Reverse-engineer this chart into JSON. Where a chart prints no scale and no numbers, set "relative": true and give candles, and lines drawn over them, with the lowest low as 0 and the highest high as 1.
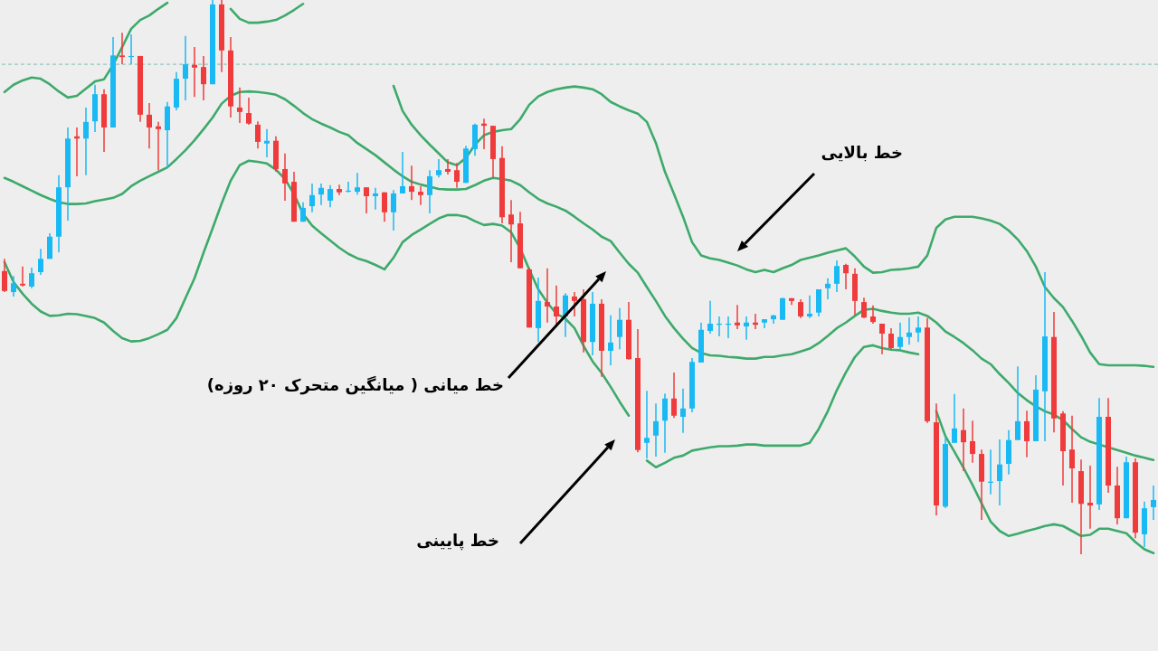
{
  "chart_data": {
    "type": "candlestick",
    "relative": true,
    "categories": [
      null,
      null,
      null,
      null,
      null,
      null,
      null,
      null,
      null,
      null,
      null,
      null,
      null,
      null,
      null,
      null,
      null,
      null,
      null,
      null,
      null,
      null,
      null,
      null,
      null,
      null,
      null,
      null,
      null,
      null,
      null,
      null,
      null,
      null,
      null,
      null,
      null,
      null,
      null,
      null,
      null,
      null,
      null,
      null,
      null,
      null,
      null,
      null,
      null,
      null,
      null,
      null,
      null,
      null,
      null,
      null,
      null,
      null,
      null,
      null,
      null,
      null,
      null,
      null,
      null,
      null,
      null,
      null,
      null,
      null,
      null,
      null,
      null,
      null,
      null,
      null,
      null,
      null,
      null,
      null,
      null,
      null,
      null,
      null,
      null,
      null,
      null,
      null,
      null,
      null,
      null,
      null,
      null,
      null,
      null,
      null,
      null,
      null,
      null,
      null,
      null,
      null,
      null,
      null,
      null,
      null,
      null,
      null,
      null,
      null,
      null,
      null,
      null,
      null,
      null,
      null,
      null,
      null,
      null,
      null,
      null,
      null,
      null,
      null,
      null,
      null,
      null,
      null
    ],
    "ohlc": [
      [
        0.511,
        0.533,
        0.473,
        0.475
      ],
      [
        0.473,
        0.502,
        0.465,
        0.489
      ],
      [
        0.488,
        0.519,
        0.483,
        0.485
      ],
      [
        0.483,
        0.517,
        0.48,
        0.507
      ],
      [
        0.509,
        0.551,
        0.504,
        0.533
      ],
      [
        0.533,
        0.579,
        0.533,
        0.573
      ],
      [
        0.573,
        0.684,
        0.545,
        0.662
      ],
      [
        0.662,
        0.77,
        0.602,
        0.75
      ],
      [
        0.754,
        0.77,
        0.682,
        0.75
      ],
      [
        0.75,
        0.806,
        0.684,
        0.78
      ],
      [
        0.781,
        0.847,
        0.762,
        0.83
      ],
      [
        0.83,
        0.839,
        0.726,
        0.77
      ],
      [
        0.77,
        0.933,
        0.77,
        0.9
      ],
      [
        0.9,
        0.941,
        0.884,
        0.897
      ],
      [
        0.897,
        0.938,
        0.884,
        0.899
      ],
      [
        0.899,
        0.899,
        0.78,
        0.793
      ],
      [
        0.793,
        0.814,
        0.732,
        0.77
      ],
      [
        0.772,
        0.78,
        0.693,
        0.767
      ],
      [
        0.765,
        0.816,
        0.697,
        0.808
      ],
      [
        0.806,
        0.87,
        0.801,
        0.858
      ],
      [
        0.858,
        0.935,
        0.819,
        0.884
      ],
      [
        0.883,
        0.915,
        0.825,
        0.878
      ],
      [
        0.879,
        0.899,
        0.819,
        0.848
      ],
      [
        0.848,
        1,
        0.848,
        0.992
      ],
      [
        0.992,
        1,
        0.87,
        0.909
      ],
      [
        0.909,
        0.933,
        0.788,
        0.808
      ],
      [
        0.806,
        0.842,
        0.778,
        0.798
      ],
      [
        0.796,
        0.824,
        0.775,
        0.777
      ],
      [
        0.775,
        0.781,
        0.732,
        0.744
      ],
      [
        0.741,
        0.767,
        0.716,
        0.746
      ],
      [
        0.746,
        0.754,
        0.69,
        0.695
      ],
      [
        0.695,
        0.723,
        0.638,
        0.669
      ],
      [
        0.672,
        0.69,
        0.6,
        0.6
      ],
      [
        0.6,
        0.635,
        0.6,
        0.625
      ],
      [
        0.628,
        0.669,
        0.617,
        0.648
      ],
      [
        0.649,
        0.669,
        0.63,
        0.661
      ],
      [
        0.638,
        0.666,
        0.626,
        0.659
      ],
      [
        0.659,
        0.667,
        0.648,
        0.653
      ],
      [
        0.654,
        0.672,
        0.653,
        0.656
      ],
      [
        0.654,
        0.688,
        0.649,
        0.662
      ],
      [
        0.662,
        0.662,
        0.615,
        0.646
      ],
      [
        0.646,
        0.661,
        0.622,
        0.651
      ],
      [
        0.653,
        0.653,
        0.6,
        0.617
      ],
      [
        0.617,
        0.657,
        0.584,
        0.651
      ],
      [
        0.651,
        0.726,
        0.651,
        0.664
      ],
      [
        0.664,
        0.701,
        0.639,
        0.654
      ],
      [
        0.654,
        0.664,
        0.63,
        0.648
      ],
      [
        0.648,
        0.693,
        0.615,
        0.682
      ],
      [
        0.684,
        0.713,
        0.68,
        0.693
      ],
      [
        0.695,
        0.713,
        0.685,
        0.69
      ],
      [
        0.693,
        0.706,
        0.661,
        0.672
      ],
      [
        0.67,
        0.737,
        0.67,
        0.732
      ],
      [
        0.731,
        0.777,
        0.719,
        0.775
      ],
      [
        0.777,
        0.786,
        0.731,
        0.773
      ],
      [
        0.773,
        0.773,
        0.679,
        0.713
      ],
      [
        0.715,
        0.736,
        0.597,
        0.608
      ],
      [
        0.613,
        0.639,
        0.527,
        0.595
      ],
      [
        0.597,
        0.618,
        0.516,
        0.516
      ],
      [
        0.514,
        0.517,
        0.409,
        0.409
      ],
      [
        0.408,
        0.499,
        0.383,
        0.457
      ],
      [
        0.455,
        0.516,
        0.418,
        0.447
      ],
      [
        0.447,
        0.485,
        0.413,
        0.429
      ],
      [
        0.429,
        0.471,
        0.392,
        0.467
      ],
      [
        0.465,
        0.473,
        0.429,
        0.457
      ],
      [
        0.46,
        0.478,
        0.364,
        0.383
      ],
      [
        0.383,
        0.473,
        0.359,
        0.452
      ],
      [
        0.452,
        0.46,
        0.32,
        0.367
      ],
      [
        0.367,
        0.431,
        0.341,
        0.382
      ],
      [
        0.392,
        0.444,
        0.37,
        0.423
      ],
      [
        0.423,
        0.455,
        0.351,
        0.352
      ],
      [
        0.354,
        0.406,
        0.184,
        0.188
      ],
      [
        0.201,
        0.295,
        0.173,
        0.21
      ],
      [
        0.214,
        0.272,
        0.176,
        0.24
      ],
      [
        0.241,
        0.29,
        0.183,
        0.281
      ],
      [
        0.281,
        0.328,
        0.246,
        0.25
      ],
      [
        0.248,
        0.299,
        0.219,
        0.263
      ],
      [
        0.263,
        0.354,
        0.256,
        0.347
      ],
      [
        0.346,
        0.418,
        0.346,
        0.405
      ],
      [
        0.403,
        0.457,
        0.398,
        0.416
      ],
      [
        0.414,
        0.429,
        0.393,
        0.416
      ],
      [
        0.414,
        0.429,
        0.39,
        0.416
      ],
      [
        0.418,
        0.45,
        0.406,
        0.413
      ],
      [
        0.411,
        0.429,
        0.387,
        0.418
      ],
      [
        0.418,
        0.434,
        0.406,
        0.414
      ],
      [
        0.418,
        0.424,
        0.408,
        0.424
      ],
      [
        0.424,
        0.432,
        0.416,
        0.431
      ],
      [
        0.423,
        0.463,
        0.423,
        0.462
      ],
      [
        0.462,
        0.462,
        0.45,
        0.457
      ],
      [
        0.455,
        0.46,
        0.426,
        0.429
      ],
      [
        0.429,
        0.467,
        0.426,
        0.434
      ],
      [
        0.436,
        0.478,
        0.429,
        0.478
      ],
      [
        0.48,
        0.498,
        0.46,
        0.488
      ],
      [
        0.488,
        0.53,
        0.473,
        0.52
      ],
      [
        0.522,
        0.524,
        0.478,
        0.507
      ],
      [
        0.506,
        0.516,
        0.432,
        0.457
      ],
      [
        0.455,
        0.463,
        0.426,
        0.427
      ],
      [
        0.429,
        0.449,
        0.416,
        0.419
      ],
      [
        0.416,
        0.416,
        0.361,
        0.398
      ],
      [
        0.398,
        0.408,
        0.369,
        0.372
      ],
      [
        0.374,
        0.418,
        0.369,
        0.392
      ],
      [
        0.392,
        0.427,
        0.378,
        0.4
      ],
      [
        0.4,
        0.429,
        0.383,
        0.409
      ],
      [
        0.409,
        0.426,
        0.237,
        0.24
      ],
      [
        0.238,
        0.272,
        0.07,
        0.088
      ],
      [
        0.086,
        0.21,
        0.083,
        0.199
      ],
      [
        0.201,
        0.289,
        0.201,
        0.227
      ],
      [
        0.224,
        0.263,
        0.15,
        0.202
      ],
      [
        0.204,
        0.241,
        0.165,
        0.181
      ],
      [
        0.181,
        0.189,
        0.062,
        0.131
      ],
      [
        0.129,
        0.189,
        0.108,
        0.131
      ],
      [
        0.132,
        0.207,
        0.088,
        0.162
      ],
      [
        0.163,
        0.224,
        0.144,
        0.206
      ],
      [
        0.206,
        0.339,
        0.206,
        0.24
      ],
      [
        0.24,
        0.259,
        0.175,
        0.204
      ],
      [
        0.204,
        0.323,
        0.204,
        0.297
      ],
      [
        0.294,
        0.509,
        0.204,
        0.393
      ],
      [
        0.392,
        0.437,
        0.22,
        0.245
      ],
      [
        0.254,
        0.258,
        0.124,
        0.186
      ],
      [
        0.189,
        0.25,
        0.093,
        0.155
      ],
      [
        0.15,
        0.171,
        0,
        0.091
      ],
      [
        0.093,
        0.16,
        0.046,
        0.088
      ],
      [
        0.09,
        0.282,
        0.08,
        0.248
      ],
      [
        0.248,
        0.282,
        0.111,
        0.124
      ],
      [
        0.124,
        0.158,
        0.054,
        0.065
      ],
      [
        0.065,
        0.176,
        0.065,
        0.166
      ],
      [
        0.166,
        0.173,
        0.029,
        0.039
      ],
      [
        0.036,
        0.095,
        0.013,
        0.083
      ],
      [
        0.085,
        0.124,
        0.062,
        0.098
      ]
    ],
    "colors": [
      "#ef3b3b",
      "#19b9f4",
      "#ef3b3b",
      "#19b9f4",
      "#19b9f4",
      "#19b9f4",
      "#19b9f4",
      "#19b9f4",
      "#ef3b3b",
      "#19b9f4",
      "#19b9f4",
      "#ef3b3b",
      "#19b9f4",
      "#ef3b3b",
      "#19b9f4",
      "#ef3b3b",
      "#ef3b3b",
      "#ef3b3b",
      "#19b9f4",
      "#19b9f4",
      "#19b9f4",
      "#ef3b3b",
      "#ef3b3b",
      "#19b9f4",
      "#ef3b3b",
      "#ef3b3b",
      "#ef3b3b",
      "#ef3b3b",
      "#ef3b3b",
      "#19b9f4",
      "#ef3b3b",
      "#ef3b3b",
      "#ef3b3b",
      "#19b9f4",
      "#19b9f4",
      "#19b9f4",
      "#19b9f4",
      "#ef3b3b",
      "#19b9f4",
      "#19b9f4",
      "#ef3b3b",
      "#19b9f4",
      "#ef3b3b",
      "#19b9f4",
      "#19b9f4",
      "#ef3b3b",
      "#ef3b3b",
      "#19b9f4",
      "#19b9f4",
      "#ef3b3b",
      "#ef3b3b",
      "#19b9f4",
      "#19b9f4",
      "#ef3b3b",
      "#ef3b3b",
      "#ef3b3b",
      "#ef3b3b",
      "#ef3b3b",
      "#ef3b3b",
      "#19b9f4",
      "#ef3b3b",
      "#ef3b3b",
      "#19b9f4",
      "#ef3b3b",
      "#ef3b3b",
      "#19b9f4",
      "#ef3b3b",
      "#19b9f4",
      "#19b9f4",
      "#ef3b3b",
      "#ef3b3b",
      "#19b9f4",
      "#19b9f4",
      "#19b9f4",
      "#ef3b3b",
      "#19b9f4",
      "#19b9f4",
      "#19b9f4",
      "#19b9f4",
      "#19b9f4",
      "#19b9f4",
      "#ef3b3b",
      "#19b9f4",
      "#ef3b3b",
      "#19b9f4",
      "#19b9f4",
      "#19b9f4",
      "#ef3b3b",
      "#ef3b3b",
      "#19b9f4",
      "#19b9f4",
      "#19b9f4",
      "#19b9f4",
      "#ef3b3b",
      "#ef3b3b",
      "#ef3b3b",
      "#ef3b3b",
      "#ef3b3b",
      "#ef3b3b",
      "#19b9f4",
      "#19b9f4",
      "#19b9f4",
      "#ef3b3b",
      "#ef3b3b",
      "#19b9f4",
      "#19b9f4",
      "#ef3b3b",
      "#ef3b3b",
      "#ef3b3b",
      "#19b9f4",
      "#19b9f4",
      "#19b9f4",
      "#19b9f4",
      "#ef3b3b",
      "#19b9f4",
      "#19b9f4",
      "#ef3b3b",
      "#ef3b3b",
      "#ef3b3b",
      "#ef3b3b",
      "#ef3b3b",
      "#19b9f4",
      "#ef3b3b",
      "#ef3b3b",
      "#19b9f4",
      "#ef3b3b",
      "#19b9f4",
      "#19b9f4"
    ],
    "series": [
      {
        "type": "line",
        "color": "#3daa6b",
        "values": [
          0.834,
          0.847,
          0.855,
          0.86,
          0.858,
          0.848,
          0.835,
          0.824,
          0.827,
          0.84,
          0.853,
          0.857,
          0.883,
          0.915,
          0.948,
          0.964,
          0.972,
          0.984,
          0.995,
          null,
          null,
          null,
          null,
          null,
          null,
          0.984,
          0.966,
          0.959,
          0.959,
          0.961,
          0.964,
          0.972,
          0.982,
          0.993,
          null,
          null,
          null,
          null,
          null,
          null,
          null,
          null,
          null,
          0.845,
          0.8,
          0.775,
          0.756,
          0.739,
          0.723,
          0.707,
          0.702,
          0.715,
          0.739,
          0.756,
          0.762,
          0.765,
          0.767,
          0.785,
          0.811,
          0.826,
          0.834,
          0.839,
          0.842,
          0.844,
          0.842,
          0.839,
          0.83,
          0.816,
          0.808,
          0.801,
          0.795,
          0.78,
          0.742,
          0.69,
          0.65,
          0.609,
          0.563,
          0.539,
          0.534,
          0.531,
          0.526,
          0.521,
          0.514,
          0.509,
          0.513,
          0.509,
          0.516,
          0.522,
          0.531,
          0.535,
          0.539,
          0.544,
          0.548,
          0.552,
          0.537,
          0.519,
          0.508,
          0.509,
          0.513,
          0.514,
          0.516,
          0.519,
          0.539,
          0.589,
          0.604,
          0.609,
          0.609,
          0.609,
          0.606,
          0.602,
          0.596,
          0.584,
          0.568,
          0.547,
          0.519,
          0.482,
          0.462,
          0.446,
          0.421,
          0.394,
          0.364,
          0.343,
          0.341,
          0.341,
          0.341,
          0.341,
          0.34,
          0.338
        ]
      },
      {
        "type": "line",
        "color": "#3daa6b",
        "values": [
          0.679,
          0.672,
          0.664,
          0.656,
          0.648,
          0.641,
          0.635,
          0.632,
          0.632,
          0.633,
          0.637,
          0.64,
          0.643,
          0.65,
          0.664,
          0.674,
          0.682,
          0.69,
          0.698,
          0.713,
          0.729,
          0.747,
          0.767,
          0.788,
          0.813,
          0.827,
          0.834,
          0.835,
          0.834,
          0.832,
          0.829,
          0.821,
          0.809,
          0.796,
          0.785,
          0.777,
          0.77,
          0.762,
          0.756,
          0.742,
          0.731,
          0.72,
          0.707,
          0.694,
          0.682,
          0.672,
          0.667,
          0.663,
          0.659,
          0.658,
          0.658,
          0.659,
          0.666,
          0.674,
          0.679,
          0.677,
          0.674,
          0.666,
          0.653,
          0.641,
          0.633,
          0.627,
          0.62,
          0.609,
          0.597,
          0.586,
          0.573,
          0.565,
          0.544,
          0.524,
          0.508,
          0.482,
          0.457,
          0.43,
          0.408,
          0.389,
          0.372,
          0.363,
          0.359,
          0.358,
          0.356,
          0.355,
          0.353,
          0.353,
          0.356,
          0.356,
          0.359,
          0.361,
          0.366,
          0.371,
          0.381,
          0.394,
          0.408,
          0.418,
          0.43,
          0.441,
          0.443,
          0.439,
          0.436,
          0.434,
          0.434,
          0.436,
          0.43,
          0.418,
          0.402,
          0.392,
          0.381,
          0.368,
          0.353,
          0.343,
          0.325,
          0.309,
          0.291,
          0.278,
          0.267,
          0.258,
          0.252,
          0.242,
          0.226,
          0.211,
          0.203,
          0.198,
          0.193,
          0.188,
          0.183,
          0.178,
          0.174,
          0.17
        ]
      },
      {
        "type": "line",
        "color": "#3daa6b",
        "values": [
          0.527,
          0.491,
          0.47,
          0.452,
          0.438,
          0.43,
          0.431,
          0.434,
          0.433,
          0.43,
          0.426,
          0.418,
          0.403,
          0.39,
          0.384,
          0.385,
          0.39,
          0.397,
          0.405,
          0.426,
          0.462,
          0.498,
          0.544,
          0.588,
          0.633,
          0.674,
          0.702,
          0.71,
          0.708,
          0.705,
          0.694,
          0.677,
          0.65,
          0.614,
          0.593,
          0.579,
          0.566,
          0.553,
          0.542,
          0.534,
          0.529,
          0.522,
          0.514,
          0.535,
          0.563,
          0.576,
          0.586,
          0.596,
          0.606,
          0.612,
          0.612,
          0.609,
          0.601,
          0.594,
          0.596,
          0.593,
          0.581,
          0.552,
          0.514,
          0.478,
          0.454,
          0.434,
          0.425,
          0.408,
          0.376,
          0.348,
          0.327,
          0.302,
          0.275,
          0.25,
          null,
          0.169,
          0.157,
          0.165,
          0.174,
          0.178,
          0.187,
          0.19,
          0.193,
          0.195,
          0.195,
          0.196,
          0.198,
          0.198,
          0.196,
          0.196,
          0.196,
          0.196,
          0.196,
          0.201,
          0.226,
          0.258,
          0.296,
          0.328,
          0.356,
          0.374,
          0.377,
          0.372,
          0.369,
          0.368,
          0.364,
          0.361,
          null,
          0.258,
          0.213,
          0.185,
          0.156,
          0.125,
          0.092,
          0.059,
          0.042,
          0.033,
          0.037,
          0.042,
          0.046,
          0.051,
          0.054,
          0.051,
          0.042,
          0.033,
          0.035,
          0.046,
          0.046,
          0.042,
          0.038,
          0.022,
          0.009,
          0.002
        ]
      }
    ],
    "ref_lines": [
      {
        "axis": "y",
        "value": 0.884,
        "color": "#7fbcb3",
        "line_style": "dashed"
      }
    ],
    "annotations": [
      "خط بالایی",
      "خط میانی ( میانگین متحرک ۲۰ روزه)",
      "خط پایینی"
    ]
  }
}
